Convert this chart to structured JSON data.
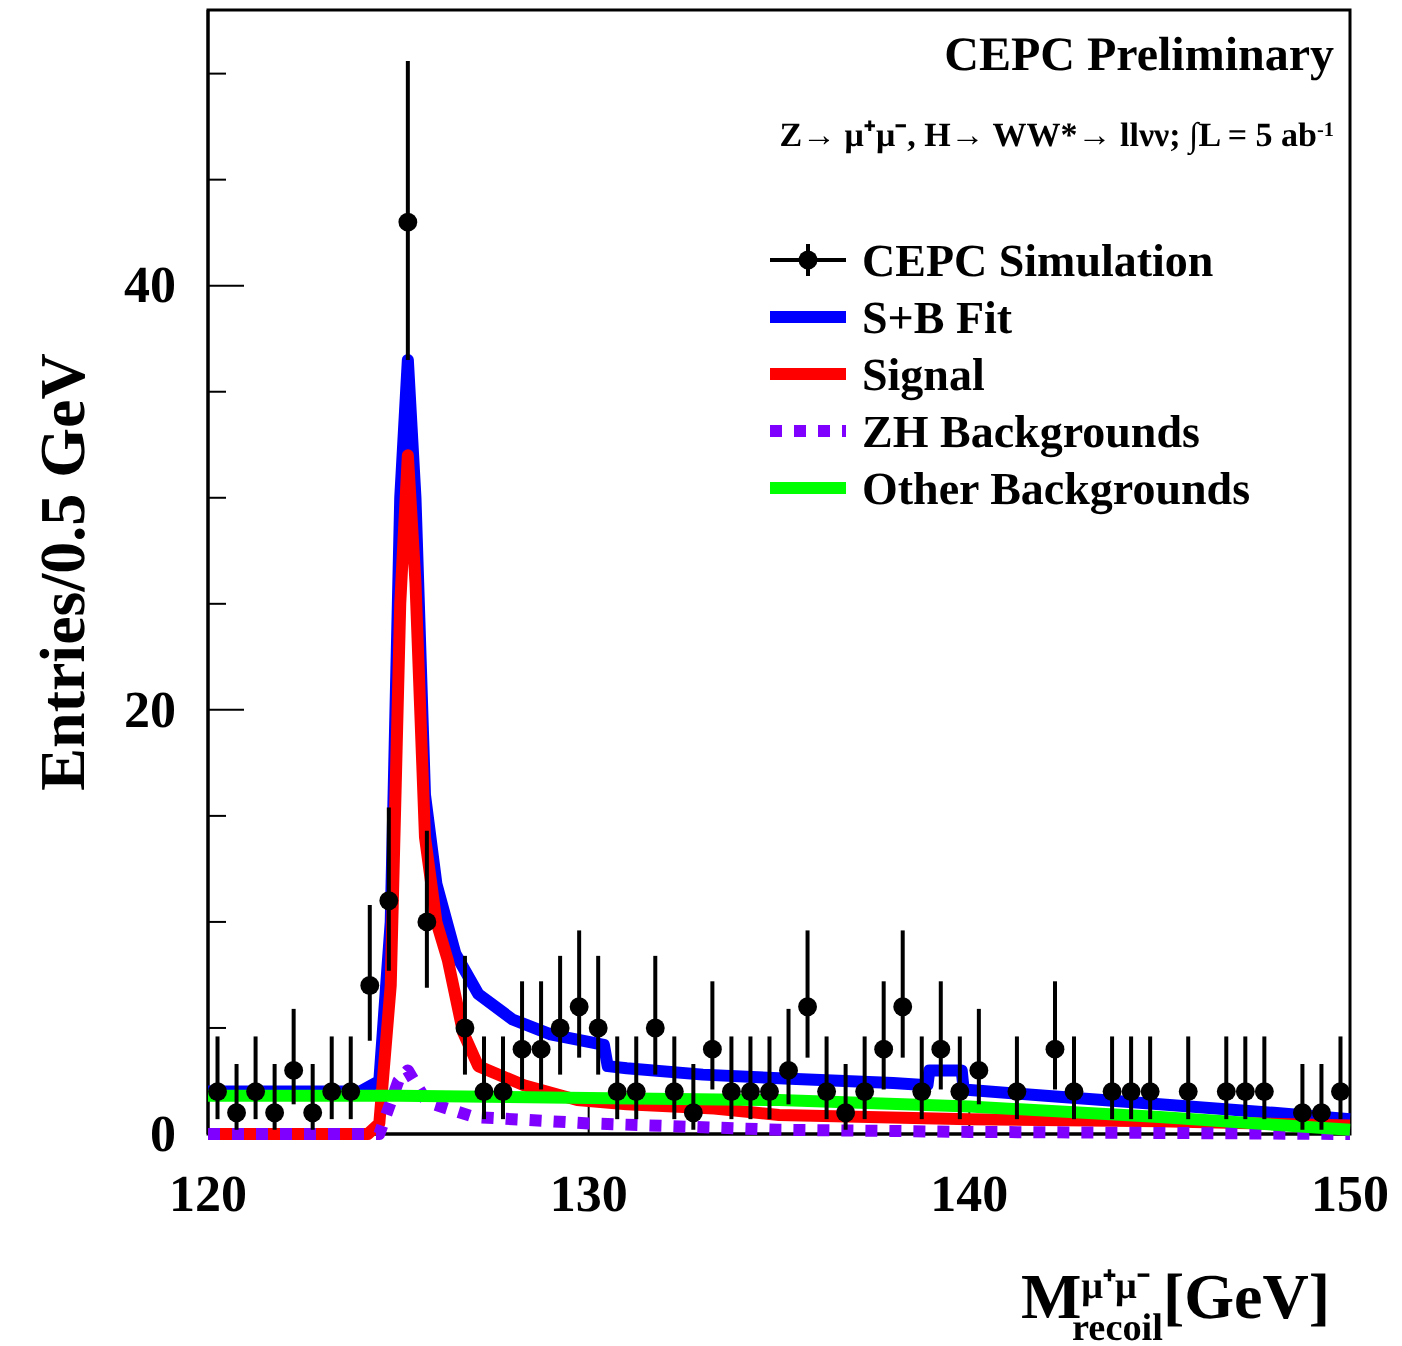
{
  "chart_data": {
    "type": "line",
    "xlabel": "M$^{μ⁺μ⁻}$$_{recoil}$[GeV]",
    "ylabel": "Entries/0.5 GeV",
    "annotations": [
      "CEPC Preliminary",
      "Z→ μ⁺μ⁻, H→ WW*→ llνν; ∫L = 5 ab$^{-1}$"
    ],
    "xlim": [
      120,
      150
    ],
    "xticks": [
      120,
      130,
      140,
      150
    ],
    "ylim": [
      0,
      53
    ],
    "yticks": [
      0,
      {
        "value": 5,
        "label": null
      },
      {
        "value": 10,
        "label": null
      },
      {
        "value": 15,
        "label": null
      },
      20,
      {
        "value": 25,
        "label": null
      },
      {
        "value": 30,
        "label": null
      },
      {
        "value": 35,
        "label": null
      },
      40,
      {
        "value": 45,
        "label": null
      },
      {
        "value": 50,
        "label": null
      }
    ],
    "grid": false,
    "legend": "top right",
    "series": [
      {
        "name": "CEPC Simulation",
        "type": "scatter",
        "color": "#000000",
        "marker": "circle",
        "x": [
          120.25,
          120.75,
          121.25,
          121.75,
          122.25,
          122.75,
          123.25,
          123.75,
          124.25,
          124.75,
          125.25,
          125.75,
          126.75,
          127.25,
          127.75,
          128.25,
          128.75,
          129.25,
          129.75,
          130.25,
          130.75,
          131.25,
          131.75,
          132.25,
          132.75,
          133.25,
          133.75,
          134.25,
          134.75,
          135.25,
          135.75,
          136.25,
          136.75,
          137.25,
          137.75,
          138.25,
          138.75,
          139.25,
          139.75,
          140.25,
          141.25,
          142.25,
          142.75,
          143.75,
          144.25,
          144.75,
          145.75,
          146.75,
          147.25,
          147.75,
          148.75,
          149.25,
          149.75
        ],
        "values": [
          2,
          1,
          2,
          1,
          3,
          1,
          2,
          2,
          7,
          11,
          43,
          10,
          5,
          2,
          2,
          4,
          4,
          5,
          6,
          5,
          2,
          2,
          5,
          2,
          1,
          4,
          2,
          2,
          2,
          3,
          6,
          2,
          1,
          2,
          4,
          6,
          2,
          4,
          2,
          3,
          2,
          4,
          2,
          2,
          2,
          2,
          2,
          2,
          2,
          2,
          1,
          1,
          2
        ],
        "errors": [
          [
            0.7,
            4.6
          ],
          [
            0.2,
            3.3
          ],
          [
            0.7,
            4.6
          ],
          [
            0.2,
            3.3
          ],
          [
            1.4,
            5.9
          ],
          [
            0.2,
            3.3
          ],
          [
            0.7,
            4.6
          ],
          [
            0.7,
            4.6
          ],
          [
            4.4,
            10.8
          ],
          [
            7.7,
            15.4
          ],
          [
            36.5,
            50.6
          ],
          [
            6.9,
            14.3
          ],
          [
            2.8,
            8.4
          ],
          [
            0.7,
            4.6
          ],
          [
            0.7,
            4.6
          ],
          [
            2.1,
            7.2
          ],
          [
            2.1,
            7.2
          ],
          [
            2.8,
            8.4
          ],
          [
            3.6,
            9.6
          ],
          [
            2.8,
            8.4
          ],
          [
            0.7,
            4.6
          ],
          [
            0.7,
            4.6
          ],
          [
            2.8,
            8.4
          ],
          [
            0.7,
            4.6
          ],
          [
            0.2,
            3.3
          ],
          [
            2.1,
            7.2
          ],
          [
            0.7,
            4.6
          ],
          [
            0.7,
            4.6
          ],
          [
            0.7,
            4.6
          ],
          [
            1.4,
            5.9
          ],
          [
            3.6,
            9.6
          ],
          [
            0.7,
            4.6
          ],
          [
            0.2,
            3.3
          ],
          [
            0.7,
            4.6
          ],
          [
            2.1,
            7.2
          ],
          [
            3.6,
            9.6
          ],
          [
            0.7,
            4.6
          ],
          [
            2.1,
            7.2
          ],
          [
            0.7,
            4.6
          ],
          [
            1.4,
            5.9
          ],
          [
            0.7,
            4.6
          ],
          [
            2.1,
            7.2
          ],
          [
            0.7,
            4.6
          ],
          [
            0.7,
            4.6
          ],
          [
            0.7,
            4.6
          ],
          [
            0.7,
            4.6
          ],
          [
            0.7,
            4.6
          ],
          [
            0.7,
            4.6
          ],
          [
            0.7,
            4.6
          ],
          [
            0.7,
            4.6
          ],
          [
            0.2,
            3.3
          ],
          [
            0.2,
            3.3
          ],
          [
            0.7,
            4.6
          ]
        ]
      },
      {
        "name": "S+B Fit",
        "color": "#0000ff",
        "line_style": "solid",
        "x": [
          120,
          122,
          124,
          124.5,
          124.8,
          125.05,
          125.25,
          125.45,
          125.7,
          126,
          126.5,
          127.1,
          128,
          129,
          130.4,
          130.5,
          131,
          133,
          135.3,
          138,
          138.9,
          138.95,
          139.8,
          139.85,
          142,
          145,
          148,
          150
        ],
        "values": [
          2,
          2,
          2,
          2.5,
          10,
          30,
          36.5,
          30,
          16,
          11.8,
          8.5,
          6.6,
          5.4,
          4.7,
          4.2,
          3.2,
          3.1,
          2.8,
          2.6,
          2.4,
          2.3,
          3,
          3,
          2.1,
          1.8,
          1.4,
          1,
          0.7
        ]
      },
      {
        "name": "Signal",
        "color": "#ff0000",
        "line_style": "solid",
        "x": [
          120,
          124.2,
          124.5,
          124.8,
          125.05,
          125.25,
          125.45,
          125.7,
          126,
          126.3,
          126.7,
          127.1,
          128.3,
          129.7,
          131,
          133.3,
          135,
          140,
          145,
          150
        ],
        "values": [
          0,
          0,
          0.5,
          7,
          25,
          32,
          26,
          14,
          10,
          8.2,
          4.8,
          3.2,
          2.3,
          1.6,
          1.4,
          1.2,
          0.9,
          0.7,
          0.6,
          0.4
        ]
      },
      {
        "name": "ZH Backgrounds",
        "color": "#8000ff",
        "line_style": "dashed",
        "x": [
          120,
          124.5,
          125,
          125.25,
          125.75,
          127,
          130,
          135,
          140,
          150
        ],
        "values": [
          0,
          0,
          2.5,
          3,
          1.5,
          0.8,
          0.5,
          0.2,
          0.1,
          0
        ]
      },
      {
        "name": "Other Backgrounds",
        "color": "#00ff00",
        "line_style": "solid",
        "x": [
          120,
          125,
          130,
          135,
          140,
          145,
          150
        ],
        "values": [
          1.8,
          1.8,
          1.7,
          1.6,
          1.3,
          0.8,
          0.2
        ]
      }
    ]
  }
}
